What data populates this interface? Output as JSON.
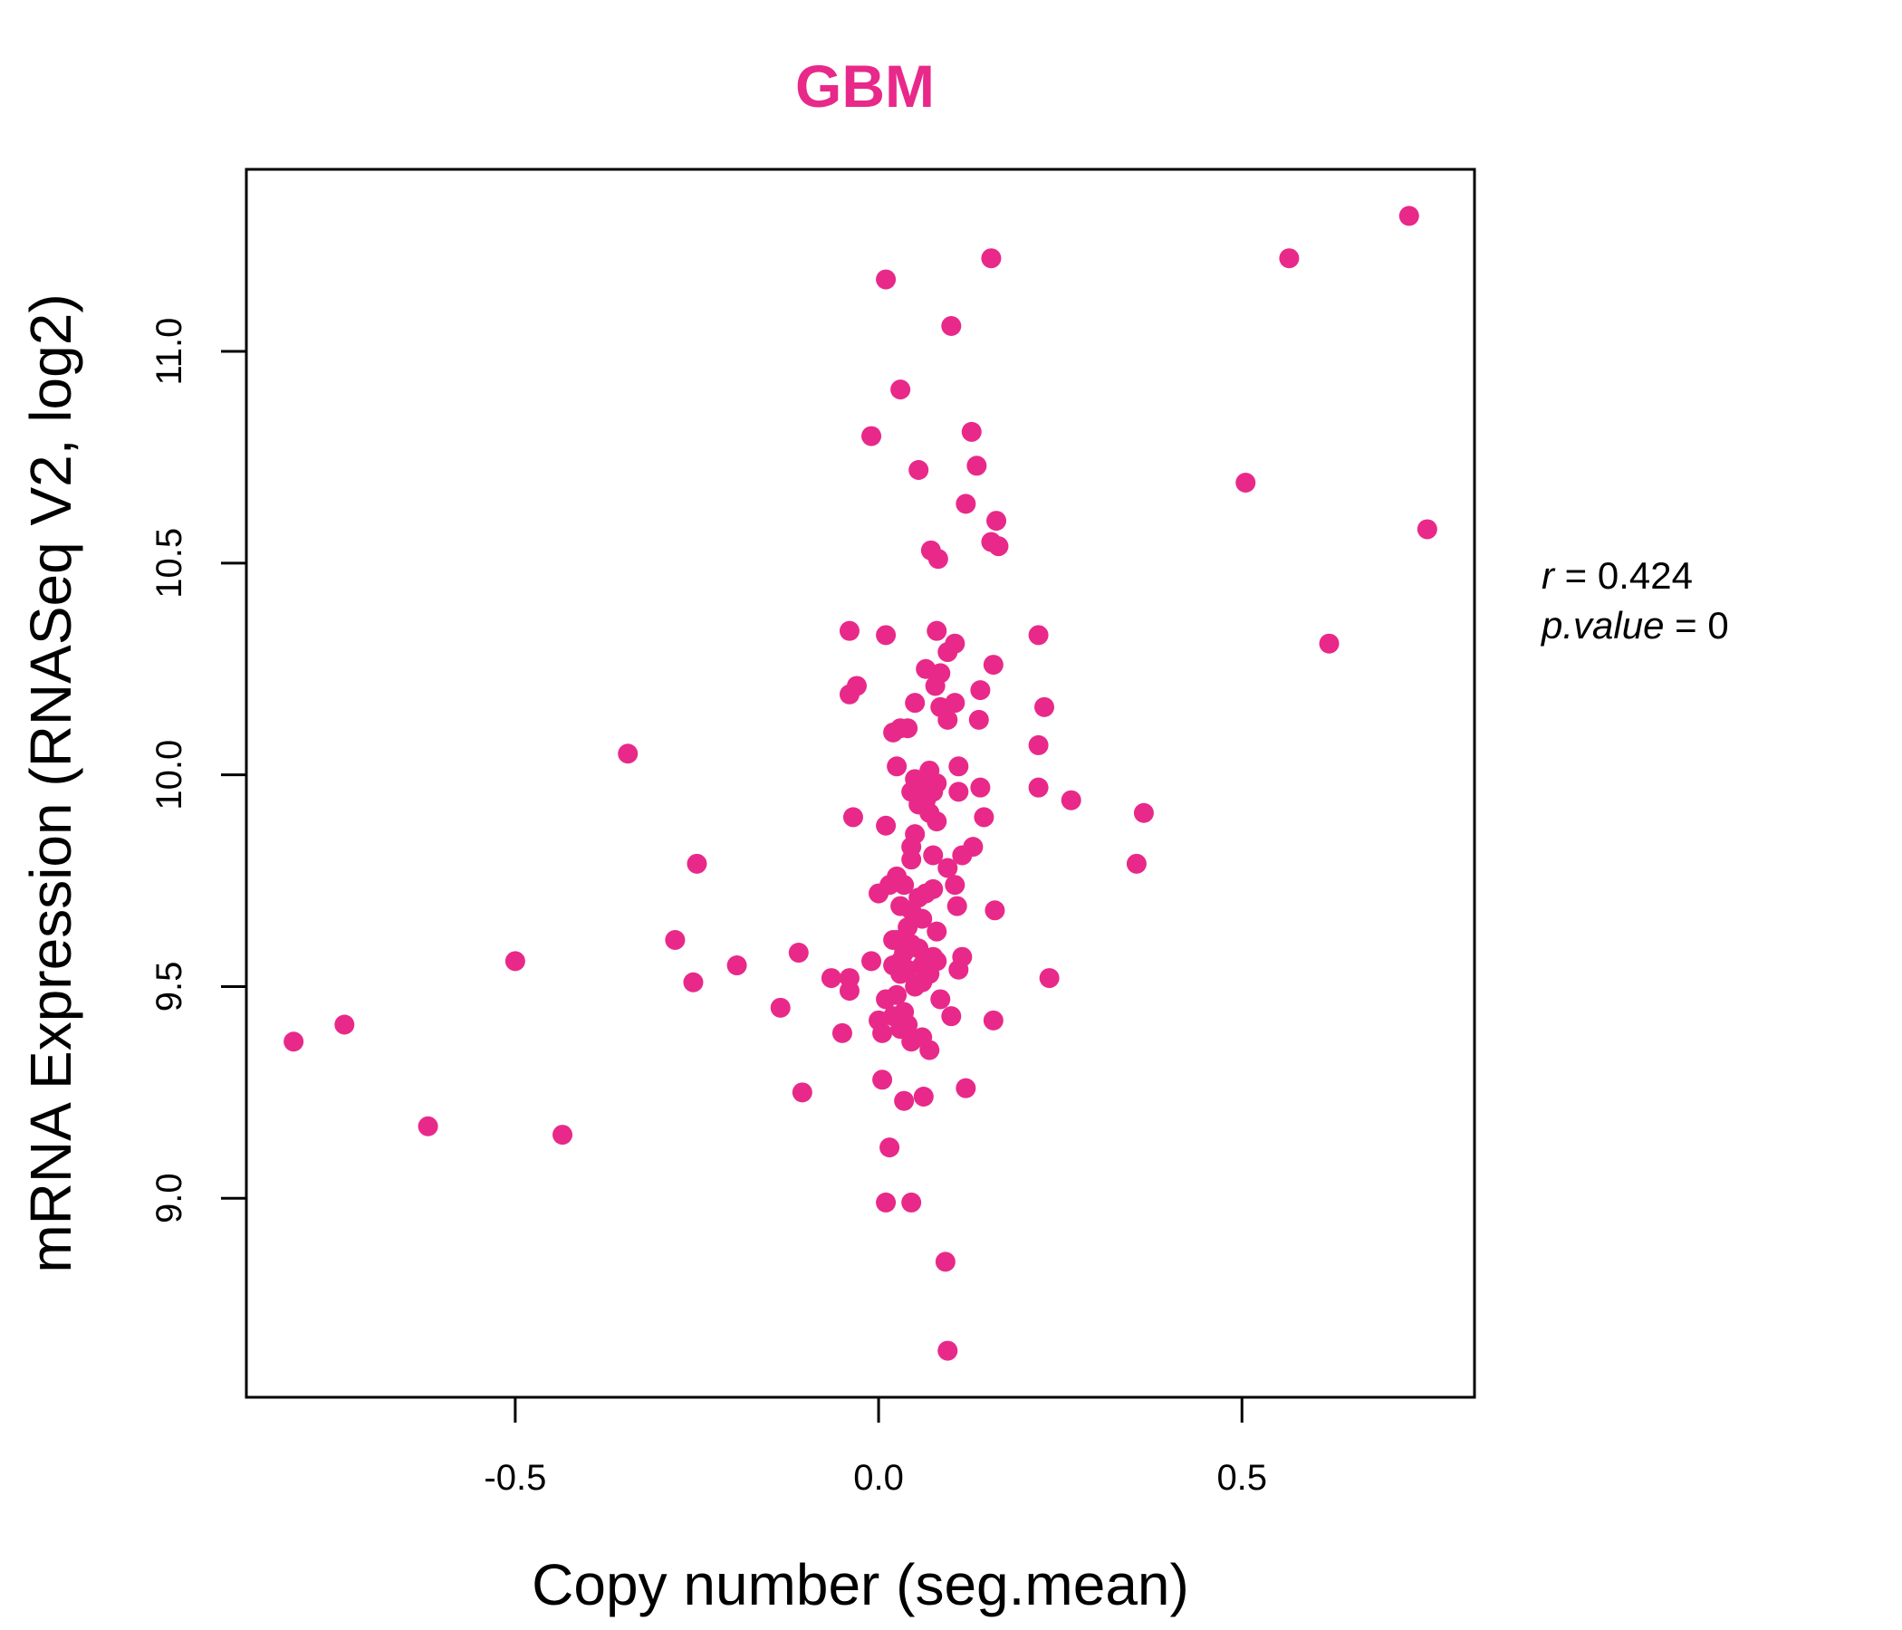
{
  "chart_data": {
    "type": "scatter",
    "title": "GBM",
    "xlabel": "Copy number (seg.mean)",
    "ylabel": "mRNA Expression (RNASeq V2, log2)",
    "xlim": [
      -0.87,
      0.82
    ],
    "ylim": [
      8.53,
      11.43
    ],
    "x_ticks": [
      -0.5,
      0.0,
      0.5
    ],
    "x_tick_labels": [
      "-0.5",
      "0.0",
      "0.5"
    ],
    "y_ticks": [
      9.0,
      9.5,
      10.0,
      10.5,
      11.0
    ],
    "y_tick_labels": [
      "9.0",
      "9.5",
      "10.0",
      "10.5",
      "11.0"
    ],
    "grid": false,
    "colors": {
      "accent": "#E8298A",
      "axis": "#000000"
    },
    "stats": {
      "r_label": "r",
      "r_value": "0.424",
      "p_label": "p.value",
      "p_value": "0"
    },
    "series": [
      {
        "points": [
          [
            0.73,
            11.32
          ],
          [
            0.565,
            11.22
          ],
          [
            0.155,
            11.22
          ],
          [
            0.01,
            11.17
          ],
          [
            0.1,
            11.06
          ],
          [
            0.03,
            10.91
          ],
          [
            -0.01,
            10.8
          ],
          [
            0.128,
            10.81
          ],
          [
            0.055,
            10.72
          ],
          [
            0.135,
            10.73
          ],
          [
            0.505,
            10.69
          ],
          [
            0.12,
            10.64
          ],
          [
            0.162,
            10.6
          ],
          [
            0.755,
            10.58
          ],
          [
            0.155,
            10.55
          ],
          [
            0.165,
            10.54
          ],
          [
            0.072,
            10.53
          ],
          [
            0.082,
            10.51
          ],
          [
            -0.04,
            10.34
          ],
          [
            0.01,
            10.33
          ],
          [
            0.08,
            10.34
          ],
          [
            0.22,
            10.33
          ],
          [
            0.105,
            10.31
          ],
          [
            0.62,
            10.31
          ],
          [
            0.095,
            10.29
          ],
          [
            0.158,
            10.26
          ],
          [
            0.065,
            10.25
          ],
          [
            0.085,
            10.24
          ],
          [
            -0.03,
            10.21
          ],
          [
            -0.04,
            10.19
          ],
          [
            0.078,
            10.21
          ],
          [
            0.14,
            10.2
          ],
          [
            0.05,
            10.17
          ],
          [
            0.085,
            10.16
          ],
          [
            0.105,
            10.17
          ],
          [
            0.228,
            10.16
          ],
          [
            0.138,
            10.13
          ],
          [
            0.095,
            10.13
          ],
          [
            0.02,
            10.1
          ],
          [
            0.03,
            10.11
          ],
          [
            0.04,
            10.11
          ],
          [
            0.22,
            10.07
          ],
          [
            -0.345,
            10.05
          ],
          [
            0.025,
            10.02
          ],
          [
            0.07,
            10.01
          ],
          [
            0.11,
            10.02
          ],
          [
            0.05,
            9.99
          ],
          [
            0.08,
            9.98
          ],
          [
            0.06,
            9.97
          ],
          [
            0.14,
            9.97
          ],
          [
            0.22,
            9.97
          ],
          [
            0.045,
            9.96
          ],
          [
            0.075,
            9.96
          ],
          [
            0.11,
            9.96
          ],
          [
            0.065,
            9.94
          ],
          [
            0.055,
            9.93
          ],
          [
            0.265,
            9.94
          ],
          [
            0.07,
            9.91
          ],
          [
            0.365,
            9.91
          ],
          [
            -0.035,
            9.9
          ],
          [
            0.145,
            9.9
          ],
          [
            0.08,
            9.89
          ],
          [
            0.01,
            9.88
          ],
          [
            0.05,
            9.86
          ],
          [
            0.045,
            9.83
          ],
          [
            0.13,
            9.83
          ],
          [
            0.075,
            9.81
          ],
          [
            0.115,
            9.81
          ],
          [
            0.045,
            9.8
          ],
          [
            -0.25,
            9.79
          ],
          [
            0.355,
            9.79
          ],
          [
            0.095,
            9.78
          ],
          [
            0.025,
            9.76
          ],
          [
            0.035,
            9.74
          ],
          [
            0.015,
            9.74
          ],
          [
            0.105,
            9.74
          ],
          [
            0.0,
            9.72
          ],
          [
            0.075,
            9.73
          ],
          [
            0.055,
            9.71
          ],
          [
            0.065,
            9.72
          ],
          [
            0.03,
            9.69
          ],
          [
            0.045,
            9.68
          ],
          [
            0.16,
            9.68
          ],
          [
            0.108,
            9.69
          ],
          [
            0.06,
            9.66
          ],
          [
            0.04,
            9.64
          ],
          [
            0.08,
            9.63
          ],
          [
            0.025,
            9.61
          ],
          [
            0.045,
            9.6
          ],
          [
            -0.28,
            9.61
          ],
          [
            0.02,
            9.61
          ],
          [
            0.055,
            9.59
          ],
          [
            0.035,
            9.58
          ],
          [
            -0.11,
            9.58
          ],
          [
            0.075,
            9.57
          ],
          [
            0.115,
            9.57
          ],
          [
            0.03,
            9.56
          ],
          [
            -0.01,
            9.56
          ],
          [
            -0.5,
            9.56
          ],
          [
            -0.195,
            9.55
          ],
          [
            0.02,
            9.55
          ],
          [
            0.04,
            9.54
          ],
          [
            0.06,
            9.55
          ],
          [
            0.08,
            9.56
          ],
          [
            0.11,
            9.54
          ],
          [
            0.03,
            9.53
          ],
          [
            0.07,
            9.53
          ],
          [
            -0.065,
            9.52
          ],
          [
            -0.04,
            9.52
          ],
          [
            0.235,
            9.52
          ],
          [
            -0.255,
            9.51
          ],
          [
            0.05,
            9.5
          ],
          [
            0.06,
            9.51
          ],
          [
            -0.04,
            9.49
          ],
          [
            0.025,
            9.48
          ],
          [
            0.01,
            9.47
          ],
          [
            0.085,
            9.47
          ],
          [
            -0.135,
            9.45
          ],
          [
            0.035,
            9.44
          ],
          [
            0.1,
            9.43
          ],
          [
            0.158,
            9.42
          ],
          [
            0.0,
            9.42
          ],
          [
            0.02,
            9.43
          ],
          [
            0.04,
            9.41
          ],
          [
            -0.05,
            9.39
          ],
          [
            0.005,
            9.39
          ],
          [
            0.03,
            9.4
          ],
          [
            0.06,
            9.38
          ],
          [
            0.045,
            9.37
          ],
          [
            -0.805,
            9.37
          ],
          [
            -0.735,
            9.41
          ],
          [
            0.07,
            9.35
          ],
          [
            0.005,
            9.28
          ],
          [
            0.12,
            9.26
          ],
          [
            -0.105,
            9.25
          ],
          [
            0.035,
            9.23
          ],
          [
            0.062,
            9.24
          ],
          [
            -0.62,
            9.17
          ],
          [
            -0.435,
            9.15
          ],
          [
            0.015,
            9.12
          ],
          [
            0.01,
            8.99
          ],
          [
            0.045,
            8.99
          ],
          [
            0.092,
            8.85
          ],
          [
            0.095,
            8.64
          ]
        ]
      }
    ]
  }
}
